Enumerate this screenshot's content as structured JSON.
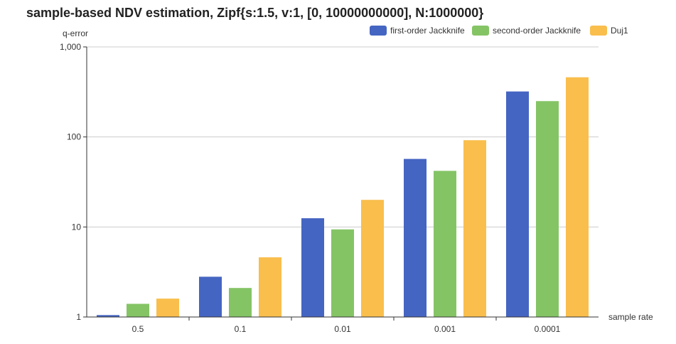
{
  "chart_data": {
    "type": "bar",
    "title": "sample-based NDV estimation, Zipf{s:1.5, v:1, [0, 10000000000], N:1000000}",
    "xlabel": "sample rate",
    "ylabel": "q-error",
    "yscale": "log",
    "ylim": [
      1,
      1000
    ],
    "yticks": [
      1,
      10,
      100,
      1000
    ],
    "ytick_labels": [
      "1",
      "10",
      "100",
      "1,000"
    ],
    "grid": "horizontal",
    "legend_position": "top-right",
    "categories": [
      "0.5",
      "0.1",
      "0.01",
      "0.001",
      "0.0001"
    ],
    "series": [
      {
        "name": "first-order Jackknife",
        "color": "#4565c2",
        "values": [
          1.05,
          2.8,
          12.5,
          57,
          320
        ]
      },
      {
        "name": "second-order Jackknife",
        "color": "#84c465",
        "values": [
          1.4,
          2.1,
          9.4,
          42,
          250
        ]
      },
      {
        "name": "Duj1",
        "color": "#f9be4c",
        "values": [
          1.6,
          4.6,
          20,
          92,
          460
        ]
      }
    ]
  }
}
